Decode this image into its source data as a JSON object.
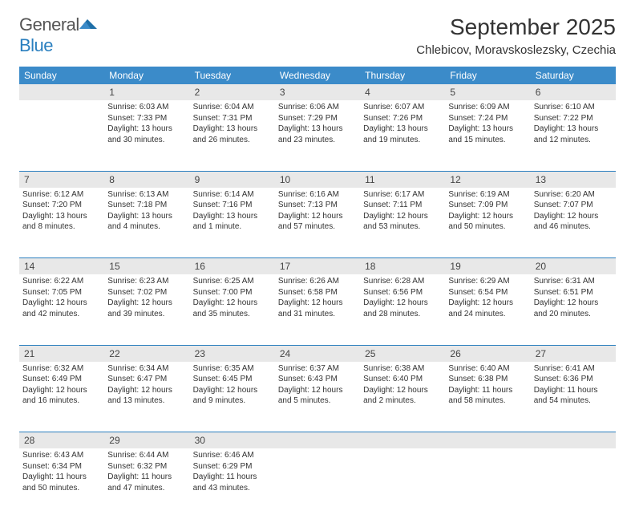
{
  "logo": {
    "general": "General",
    "blue": "Blue"
  },
  "title": "September 2025",
  "location": "Chlebicov, Moravskoslezsky, Czechia",
  "header_bg": "#3b8bc9",
  "header_text": "#ffffff",
  "daynum_bg": "#e8e8e8",
  "border_color": "#2a7fbf",
  "logo_blue": "#2a7fbf",
  "days": [
    "Sunday",
    "Monday",
    "Tuesday",
    "Wednesday",
    "Thursday",
    "Friday",
    "Saturday"
  ],
  "weeks": [
    {
      "nums": [
        "",
        "1",
        "2",
        "3",
        "4",
        "5",
        "6"
      ],
      "cells": [
        {},
        {
          "sunrise": "Sunrise: 6:03 AM",
          "sunset": "Sunset: 7:33 PM",
          "dl1": "Daylight: 13 hours",
          "dl2": "and 30 minutes."
        },
        {
          "sunrise": "Sunrise: 6:04 AM",
          "sunset": "Sunset: 7:31 PM",
          "dl1": "Daylight: 13 hours",
          "dl2": "and 26 minutes."
        },
        {
          "sunrise": "Sunrise: 6:06 AM",
          "sunset": "Sunset: 7:29 PM",
          "dl1": "Daylight: 13 hours",
          "dl2": "and 23 minutes."
        },
        {
          "sunrise": "Sunrise: 6:07 AM",
          "sunset": "Sunset: 7:26 PM",
          "dl1": "Daylight: 13 hours",
          "dl2": "and 19 minutes."
        },
        {
          "sunrise": "Sunrise: 6:09 AM",
          "sunset": "Sunset: 7:24 PM",
          "dl1": "Daylight: 13 hours",
          "dl2": "and 15 minutes."
        },
        {
          "sunrise": "Sunrise: 6:10 AM",
          "sunset": "Sunset: 7:22 PM",
          "dl1": "Daylight: 13 hours",
          "dl2": "and 12 minutes."
        }
      ]
    },
    {
      "nums": [
        "7",
        "8",
        "9",
        "10",
        "11",
        "12",
        "13"
      ],
      "cells": [
        {
          "sunrise": "Sunrise: 6:12 AM",
          "sunset": "Sunset: 7:20 PM",
          "dl1": "Daylight: 13 hours",
          "dl2": "and 8 minutes."
        },
        {
          "sunrise": "Sunrise: 6:13 AM",
          "sunset": "Sunset: 7:18 PM",
          "dl1": "Daylight: 13 hours",
          "dl2": "and 4 minutes."
        },
        {
          "sunrise": "Sunrise: 6:14 AM",
          "sunset": "Sunset: 7:16 PM",
          "dl1": "Daylight: 13 hours",
          "dl2": "and 1 minute."
        },
        {
          "sunrise": "Sunrise: 6:16 AM",
          "sunset": "Sunset: 7:13 PM",
          "dl1": "Daylight: 12 hours",
          "dl2": "and 57 minutes."
        },
        {
          "sunrise": "Sunrise: 6:17 AM",
          "sunset": "Sunset: 7:11 PM",
          "dl1": "Daylight: 12 hours",
          "dl2": "and 53 minutes."
        },
        {
          "sunrise": "Sunrise: 6:19 AM",
          "sunset": "Sunset: 7:09 PM",
          "dl1": "Daylight: 12 hours",
          "dl2": "and 50 minutes."
        },
        {
          "sunrise": "Sunrise: 6:20 AM",
          "sunset": "Sunset: 7:07 PM",
          "dl1": "Daylight: 12 hours",
          "dl2": "and 46 minutes."
        }
      ]
    },
    {
      "nums": [
        "14",
        "15",
        "16",
        "17",
        "18",
        "19",
        "20"
      ],
      "cells": [
        {
          "sunrise": "Sunrise: 6:22 AM",
          "sunset": "Sunset: 7:05 PM",
          "dl1": "Daylight: 12 hours",
          "dl2": "and 42 minutes."
        },
        {
          "sunrise": "Sunrise: 6:23 AM",
          "sunset": "Sunset: 7:02 PM",
          "dl1": "Daylight: 12 hours",
          "dl2": "and 39 minutes."
        },
        {
          "sunrise": "Sunrise: 6:25 AM",
          "sunset": "Sunset: 7:00 PM",
          "dl1": "Daylight: 12 hours",
          "dl2": "and 35 minutes."
        },
        {
          "sunrise": "Sunrise: 6:26 AM",
          "sunset": "Sunset: 6:58 PM",
          "dl1": "Daylight: 12 hours",
          "dl2": "and 31 minutes."
        },
        {
          "sunrise": "Sunrise: 6:28 AM",
          "sunset": "Sunset: 6:56 PM",
          "dl1": "Daylight: 12 hours",
          "dl2": "and 28 minutes."
        },
        {
          "sunrise": "Sunrise: 6:29 AM",
          "sunset": "Sunset: 6:54 PM",
          "dl1": "Daylight: 12 hours",
          "dl2": "and 24 minutes."
        },
        {
          "sunrise": "Sunrise: 6:31 AM",
          "sunset": "Sunset: 6:51 PM",
          "dl1": "Daylight: 12 hours",
          "dl2": "and 20 minutes."
        }
      ]
    },
    {
      "nums": [
        "21",
        "22",
        "23",
        "24",
        "25",
        "26",
        "27"
      ],
      "cells": [
        {
          "sunrise": "Sunrise: 6:32 AM",
          "sunset": "Sunset: 6:49 PM",
          "dl1": "Daylight: 12 hours",
          "dl2": "and 16 minutes."
        },
        {
          "sunrise": "Sunrise: 6:34 AM",
          "sunset": "Sunset: 6:47 PM",
          "dl1": "Daylight: 12 hours",
          "dl2": "and 13 minutes."
        },
        {
          "sunrise": "Sunrise: 6:35 AM",
          "sunset": "Sunset: 6:45 PM",
          "dl1": "Daylight: 12 hours",
          "dl2": "and 9 minutes."
        },
        {
          "sunrise": "Sunrise: 6:37 AM",
          "sunset": "Sunset: 6:43 PM",
          "dl1": "Daylight: 12 hours",
          "dl2": "and 5 minutes."
        },
        {
          "sunrise": "Sunrise: 6:38 AM",
          "sunset": "Sunset: 6:40 PM",
          "dl1": "Daylight: 12 hours",
          "dl2": "and 2 minutes."
        },
        {
          "sunrise": "Sunrise: 6:40 AM",
          "sunset": "Sunset: 6:38 PM",
          "dl1": "Daylight: 11 hours",
          "dl2": "and 58 minutes."
        },
        {
          "sunrise": "Sunrise: 6:41 AM",
          "sunset": "Sunset: 6:36 PM",
          "dl1": "Daylight: 11 hours",
          "dl2": "and 54 minutes."
        }
      ]
    },
    {
      "nums": [
        "28",
        "29",
        "30",
        "",
        "",
        "",
        ""
      ],
      "cells": [
        {
          "sunrise": "Sunrise: 6:43 AM",
          "sunset": "Sunset: 6:34 PM",
          "dl1": "Daylight: 11 hours",
          "dl2": "and 50 minutes."
        },
        {
          "sunrise": "Sunrise: 6:44 AM",
          "sunset": "Sunset: 6:32 PM",
          "dl1": "Daylight: 11 hours",
          "dl2": "and 47 minutes."
        },
        {
          "sunrise": "Sunrise: 6:46 AM",
          "sunset": "Sunset: 6:29 PM",
          "dl1": "Daylight: 11 hours",
          "dl2": "and 43 minutes."
        },
        {},
        {},
        {},
        {}
      ]
    }
  ]
}
